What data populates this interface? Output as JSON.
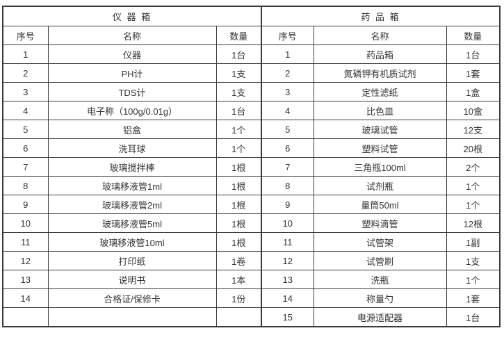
{
  "page": {
    "background_color": "#ffffff",
    "border_color": "#3a3a3a",
    "text_color": "#333333"
  },
  "tables": [
    {
      "title": "仪 器 箱",
      "headers": [
        "序号",
        "名称",
        "数量"
      ],
      "rows": [
        [
          "1",
          "仪器",
          "1台"
        ],
        [
          "2",
          "PH计",
          "1支"
        ],
        [
          "3",
          "TDS计",
          "1支"
        ],
        [
          "4",
          "电子称（100g/0.01g）",
          "1台"
        ],
        [
          "5",
          "铝盒",
          "1个"
        ],
        [
          "6",
          "洗耳球",
          "1个"
        ],
        [
          "7",
          "玻璃搅拌棒",
          "1根"
        ],
        [
          "8",
          "玻璃移液管1ml",
          "1根"
        ],
        [
          "9",
          "玻璃移液管2ml",
          "1根"
        ],
        [
          "10",
          "玻璃移液管5ml",
          "1根"
        ],
        [
          "11",
          "玻璃移液管10ml",
          "1根"
        ],
        [
          "12",
          "打印纸",
          "1卷"
        ],
        [
          "13",
          "说明书",
          "1本"
        ],
        [
          "14",
          "合格证/保修卡",
          "1份"
        ],
        [
          "",
          "",
          ""
        ]
      ]
    },
    {
      "title": "药 品 箱",
      "headers": [
        "序号",
        "名称",
        "数量"
      ],
      "rows": [
        [
          "1",
          "药品箱",
          "1台"
        ],
        [
          "2",
          "氮磷钾有机质试剂",
          "1套"
        ],
        [
          "3",
          "定性滤纸",
          "1盒"
        ],
        [
          "4",
          "比色皿",
          "10盒"
        ],
        [
          "5",
          "玻璃试管",
          "12支"
        ],
        [
          "6",
          "塑料试管",
          "20根"
        ],
        [
          "7",
          "三角瓶100ml",
          "2个"
        ],
        [
          "8",
          "试剂瓶",
          "1个"
        ],
        [
          "9",
          "量筒50ml",
          "1个"
        ],
        [
          "10",
          "塑料滴管",
          "12根"
        ],
        [
          "11",
          "试管架",
          "1副"
        ],
        [
          "12",
          "试管刷",
          "1支"
        ],
        [
          "13",
          "洗瓶",
          "1个"
        ],
        [
          "14",
          "称量勺",
          "1套"
        ],
        [
          "15",
          "电源适配器",
          "1台"
        ]
      ]
    }
  ]
}
